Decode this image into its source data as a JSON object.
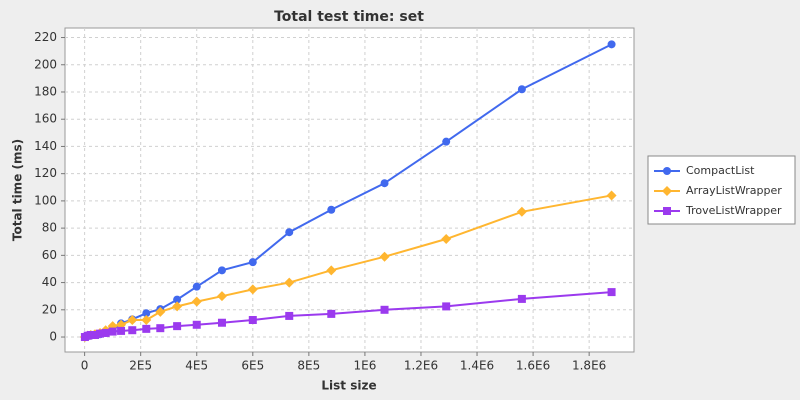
{
  "chart_data": {
    "type": "line",
    "title": "Total test time: set",
    "x_label": "List size",
    "y_label": "Total time (ms)",
    "x": [
      1000,
      11000,
      22000,
      37000,
      55000,
      75000,
      100000,
      130000,
      170000,
      220000,
      270000,
      330000,
      400000,
      490000,
      600000,
      730000,
      880000,
      1070000,
      1290000,
      1560000,
      1880000
    ],
    "series": [
      {
        "name": "CompactList",
        "color": "#4169ee",
        "marker": "circle",
        "values": [
          0,
          0.5,
          1,
          1.5,
          2,
          3,
          5,
          10,
          13,
          17.5,
          20.5,
          27.5,
          37,
          49,
          55,
          77,
          93.5,
          113,
          143.5,
          182,
          215
        ]
      },
      {
        "name": "ArrayListWrapper",
        "color": "#ffb630",
        "marker": "diamond",
        "values": [
          0,
          1,
          1.5,
          2,
          3,
          5,
          8,
          9,
          12.5,
          12.5,
          18.5,
          22.5,
          26,
          30,
          35,
          40,
          49,
          59,
          72,
          92,
          104
        ]
      },
      {
        "name": "TroveListWrapper",
        "color": "#9b3aee",
        "marker": "square",
        "values": [
          0,
          1,
          1.5,
          1.5,
          2.5,
          3,
          4,
          4.5,
          5,
          6,
          6.5,
          8,
          9,
          10.5,
          12.5,
          15.5,
          17,
          20,
          22.5,
          28,
          33
        ]
      }
    ],
    "xlim": [
      -70000,
      1960000
    ],
    "ylim": [
      -11,
      227
    ],
    "xticks": [
      0,
      {
        "value": 200000,
        "label": "2E5"
      },
      {
        "value": 400000,
        "label": "4E5"
      },
      {
        "value": 600000,
        "label": "6E5"
      },
      {
        "value": 800000,
        "label": "8E5"
      },
      {
        "value": 1000000,
        "label": "1E6"
      },
      {
        "value": 1200000,
        "label": "1.2E6"
      },
      {
        "value": 1400000,
        "label": "1.4E6"
      },
      {
        "value": 1600000,
        "label": "1.6E6"
      },
      {
        "value": 1800000,
        "label": "1.8E6"
      }
    ],
    "yticks": [
      0,
      20,
      40,
      60,
      80,
      100,
      120,
      140,
      160,
      180,
      200,
      220
    ],
    "grid": true,
    "legend": "right"
  }
}
